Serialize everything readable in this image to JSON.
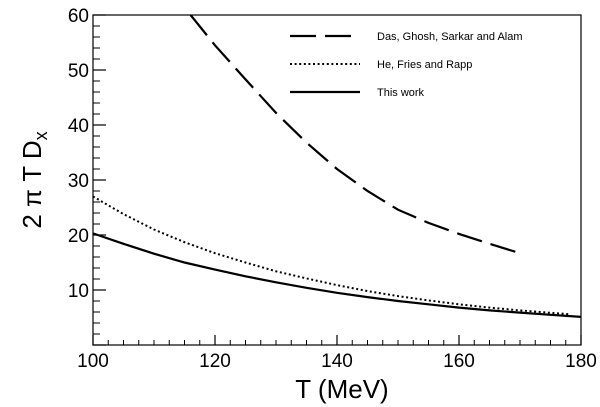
{
  "chart_data": {
    "type": "line",
    "title": "",
    "xlabel": "T (MeV)",
    "ylabel_main": "2 π T D",
    "ylabel_sub": "x",
    "xlim": [
      100,
      180
    ],
    "ylim": [
      0,
      60
    ],
    "x_ticks": [
      100,
      120,
      140,
      160,
      180
    ],
    "y_ticks": [
      10,
      20,
      30,
      40,
      50,
      60
    ],
    "grid": false,
    "legend_position": "top-right",
    "series": [
      {
        "name": "Das, Ghosh, Sarkar and Alam",
        "style": "dashed",
        "color": "#000000",
        "x": [
          116,
          120,
          125,
          130,
          135,
          140,
          145,
          150,
          155,
          160,
          165,
          170
        ],
        "y": [
          60,
          54.5,
          48.3,
          42.2,
          36.8,
          32.0,
          28.0,
          24.6,
          22.2,
          20.2,
          18.4,
          16.7
        ]
      },
      {
        "name": "He, Fries and Rapp",
        "style": "dotted",
        "color": "#000000",
        "x": [
          100,
          105,
          110,
          115,
          120,
          125,
          130,
          135,
          140,
          145,
          150,
          155,
          160,
          165,
          170,
          178
        ],
        "y": [
          27.0,
          23.8,
          21.0,
          18.7,
          16.7,
          15.0,
          13.4,
          12.1,
          10.9,
          9.8,
          8.9,
          8.1,
          7.4,
          6.8,
          6.3,
          5.6
        ]
      },
      {
        "name": "This work",
        "style": "solid",
        "color": "#000000",
        "x": [
          100,
          105,
          110,
          115,
          120,
          125,
          130,
          135,
          140,
          145,
          150,
          155,
          160,
          165,
          170,
          175,
          180
        ],
        "y": [
          20.3,
          18.4,
          16.6,
          15.0,
          13.7,
          12.5,
          11.4,
          10.4,
          9.5,
          8.7,
          8.0,
          7.4,
          6.8,
          6.3,
          5.9,
          5.5,
          5.1
        ]
      }
    ]
  }
}
